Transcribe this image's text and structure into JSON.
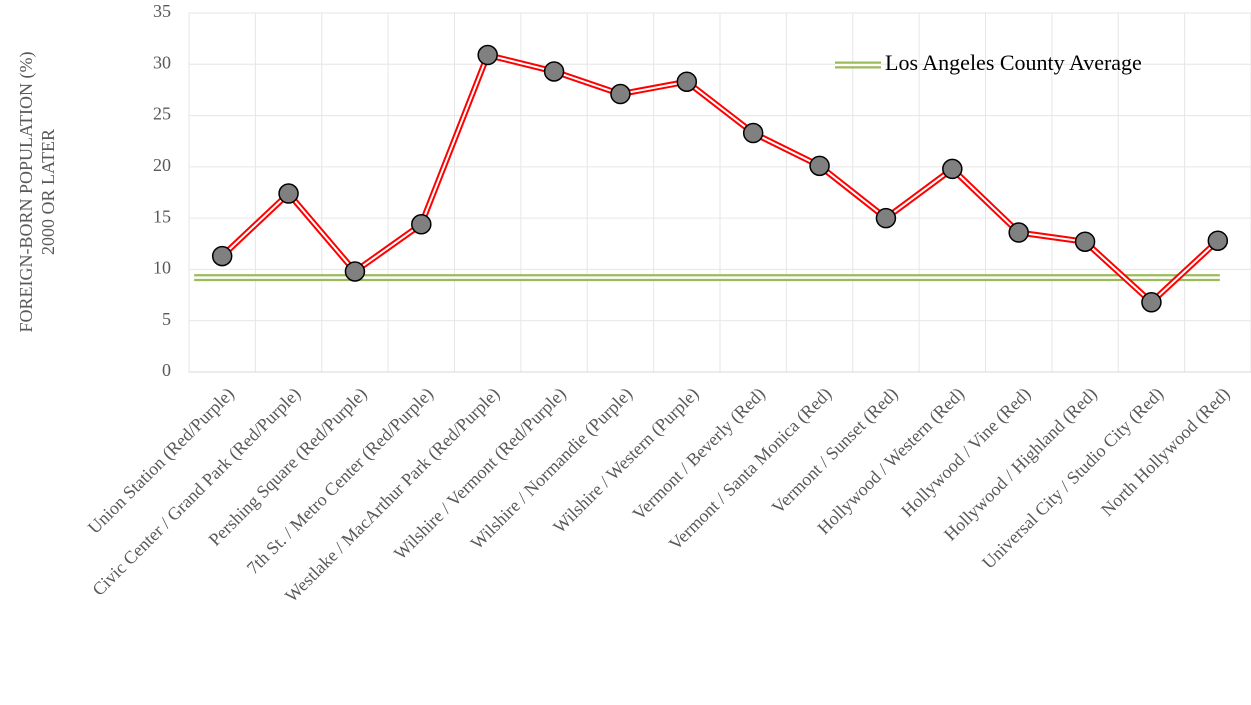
{
  "chart_data": {
    "type": "line",
    "ylabel": [
      "FOREIGN-BORN POPULATION (%)",
      "2000 OR LATER"
    ],
    "categories": [
      "Union Station (Red/Purple)",
      "Civic Center / Grand Park (Red/Purple)",
      "Pershing Square (Red/Purple)",
      "7th St. / Metro Center (Red/Purple)",
      "Westlake / MacArthur Park (Red/Purple)",
      "Wilshire / Vermont (Red/Purple)",
      "Wilshire / Normandie (Purple)",
      "Wilshire / Western (Purple)",
      "Vermont / Beverly (Red)",
      "Vermont / Santa Monica (Red)",
      "Vermont / Sunset (Red)",
      "Hollywood / Western (Red)",
      "Hollywood / Vine (Red)",
      "Hollywood / Highland (Red)",
      "Universal City / Studio City (Red)",
      "North Hollywood (Red)"
    ],
    "series": [
      {
        "color": "#ff0000",
        "marker_color": "#808080",
        "values": [
          11.3,
          17.4,
          9.8,
          14.4,
          30.9,
          29.3,
          27.1,
          28.3,
          23.3,
          20.1,
          15.0,
          19.8,
          13.6,
          12.7,
          6.8,
          12.8
        ]
      }
    ],
    "reference_line": {
      "name": "Los Angeles County Average",
      "value": 9.2,
      "color": "#9bbb59"
    },
    "ylim": [
      0,
      35
    ],
    "yticks": [
      0,
      5,
      10,
      15,
      20,
      25,
      30,
      35
    ],
    "grid": true,
    "legend": "top-right"
  }
}
